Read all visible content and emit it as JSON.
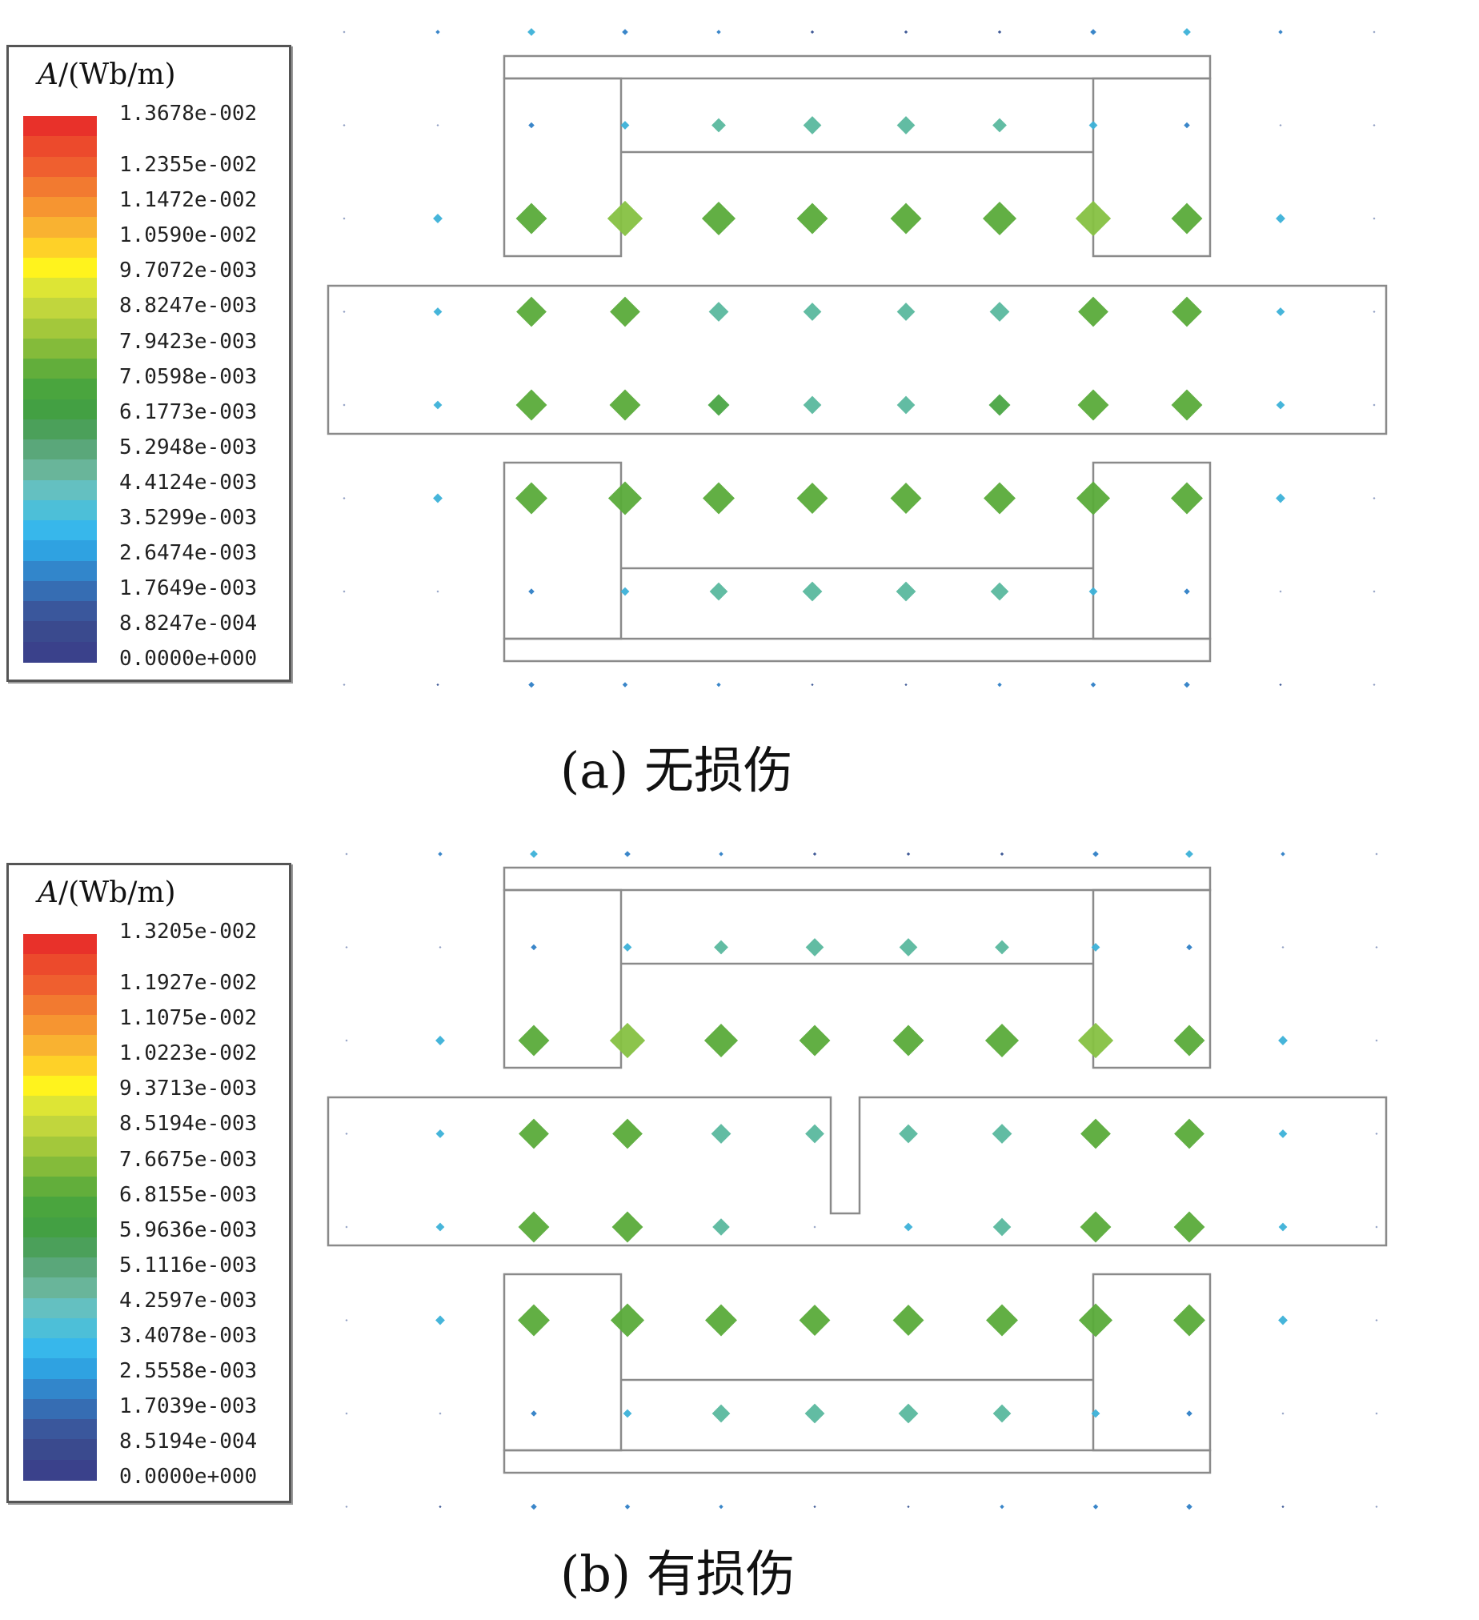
{
  "panels": [
    {
      "id": "a",
      "caption": "(a)  无损伤",
      "legend": {
        "title_symbol": "A",
        "title_unit": "/(Wb/m)",
        "ticks": [
          "1.3678e-002",
          "1.2355e-002",
          "1.1472e-002",
          "1.0590e-002",
          "9.7072e-003",
          "8.8247e-003",
          "7.9423e-003",
          "7.0598e-003",
          "6.1773e-003",
          "5.2948e-003",
          "4.4124e-003",
          "3.5299e-003",
          "2.6474e-003",
          "1.7649e-003",
          "8.8247e-004",
          "0.0000e+000"
        ]
      },
      "has_crack": false
    },
    {
      "id": "b",
      "caption": "(b)  有损伤",
      "legend": {
        "title_symbol": "A",
        "title_unit": "/(Wb/m)",
        "ticks": [
          "1.3205e-002",
          "1.1927e-002",
          "1.1075e-002",
          "1.0223e-002",
          "9.3713e-003",
          "8.5194e-003",
          "7.6675e-003",
          "6.8155e-003",
          "5.9636e-003",
          "5.1116e-003",
          "4.2597e-003",
          "3.4078e-003",
          "2.5558e-003",
          "1.7039e-003",
          "8.5194e-004",
          "0.0000e+000"
        ]
      },
      "has_crack": true
    }
  ],
  "colorscale": [
    "#e8312a",
    "#ec4a2c",
    "#ef5f2f",
    "#f27a30",
    "#f69531",
    "#f9b231",
    "#fed128",
    "#fff31d",
    "#dde535",
    "#c1d63d",
    "#a3c83b",
    "#84bb3a",
    "#62ae3b",
    "#4aa53e",
    "#43a043",
    "#4ba05a",
    "#5aa77a",
    "#69b59a",
    "#64c0c1",
    "#4dbfd8",
    "#37b7eb",
    "#2fa2e1",
    "#3286cb",
    "#366db3",
    "#3a579c",
    "#3a4a8e",
    "#3a418b"
  ],
  "arrows": {
    "colors": {
      "red": "#e8312a",
      "green": "#5aab3a",
      "light_green": "#86c142",
      "mid_green": "#4aa544",
      "teal": "#5ab89e",
      "cyan": "#3cb1d8",
      "blue": "#2f7fc6",
      "navy": "#334e8f"
    },
    "grid_rows": 8,
    "grid_cols": 12,
    "panel_a_magnitudes": [
      [
        0.04,
        0.1,
        0.18,
        0.14,
        0.1,
        0.08,
        0.08,
        0.08,
        0.14,
        0.18,
        0.1,
        0.04
      ],
      [
        0.0,
        0.0,
        0.14,
        0.2,
        0.33,
        0.42,
        0.42,
        0.33,
        0.2,
        0.14,
        0.0,
        0.0
      ],
      [
        0.04,
        0.22,
        0.72,
        0.82,
        0.78,
        0.72,
        0.72,
        0.78,
        0.82,
        0.72,
        0.22,
        0.04
      ],
      [
        0.02,
        0.2,
        0.7,
        0.7,
        0.46,
        0.42,
        0.42,
        0.46,
        0.7,
        0.7,
        0.2,
        0.02
      ],
      [
        0.02,
        0.2,
        0.72,
        0.72,
        0.5,
        0.42,
        0.42,
        0.5,
        0.72,
        0.72,
        0.2,
        0.02
      ],
      [
        0.04,
        0.22,
        0.74,
        0.78,
        0.74,
        0.72,
        0.72,
        0.74,
        0.78,
        0.74,
        0.22,
        0.04
      ],
      [
        0.0,
        0.0,
        0.14,
        0.2,
        0.42,
        0.46,
        0.46,
        0.42,
        0.2,
        0.14,
        0.0,
        0.0
      ],
      [
        0.02,
        0.06,
        0.14,
        0.12,
        0.1,
        0.06,
        0.06,
        0.1,
        0.12,
        0.14,
        0.06,
        0.02
      ]
    ],
    "panel_b_magnitudes": [
      [
        0.04,
        0.1,
        0.18,
        0.14,
        0.1,
        0.08,
        0.08,
        0.08,
        0.14,
        0.18,
        0.1,
        0.04
      ],
      [
        0.0,
        0.0,
        0.14,
        0.2,
        0.33,
        0.42,
        0.42,
        0.33,
        0.2,
        0.14,
        0.0,
        0.0
      ],
      [
        0.04,
        0.22,
        0.72,
        0.82,
        0.78,
        0.72,
        0.72,
        0.78,
        0.82,
        0.72,
        0.22,
        0.04
      ],
      [
        0.02,
        0.2,
        0.7,
        0.7,
        0.46,
        0.44,
        0.44,
        0.46,
        0.7,
        0.7,
        0.2,
        0.02
      ],
      [
        0.02,
        0.2,
        0.72,
        0.72,
        0.4,
        0.0,
        0.2,
        0.42,
        0.72,
        0.72,
        0.2,
        0.02
      ],
      [
        0.04,
        0.22,
        0.74,
        0.78,
        0.74,
        0.72,
        0.72,
        0.74,
        0.78,
        0.74,
        0.22,
        0.04
      ],
      [
        0.0,
        0.0,
        0.14,
        0.2,
        0.42,
        0.46,
        0.46,
        0.42,
        0.2,
        0.14,
        0.0,
        0.0
      ],
      [
        0.02,
        0.06,
        0.14,
        0.12,
        0.1,
        0.06,
        0.06,
        0.1,
        0.12,
        0.14,
        0.06,
        0.02
      ]
    ]
  }
}
